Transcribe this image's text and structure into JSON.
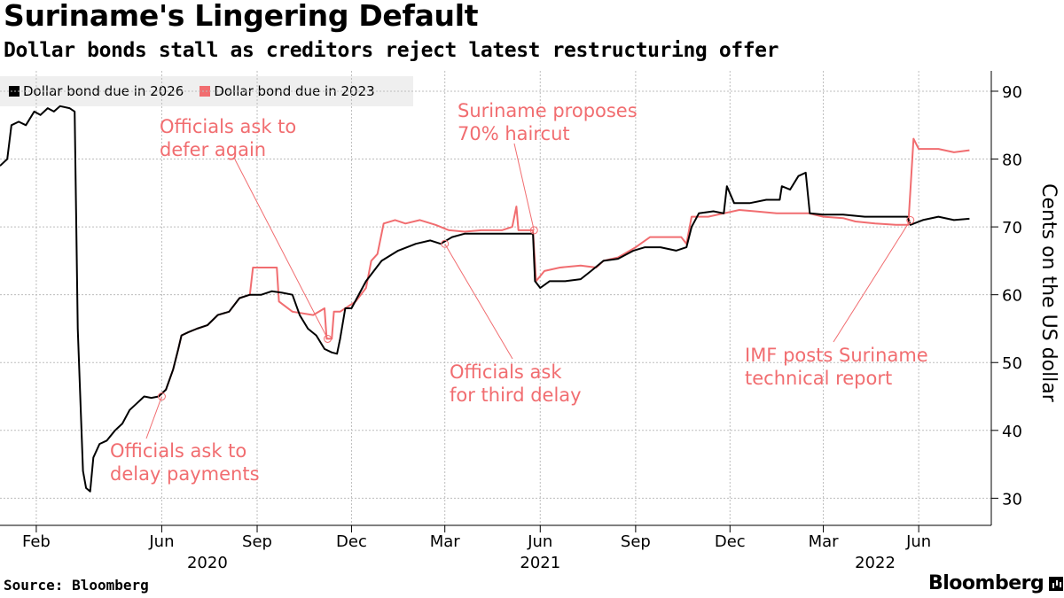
{
  "header": {
    "title": "Suriname's Lingering Default",
    "subtitle": "Dollar bonds stall as creditors reject latest restructuring offer"
  },
  "footer": {
    "source": "Source: Bloomberg",
    "brand": "Bloomberg"
  },
  "chart_data": {
    "type": "line",
    "title": "Suriname's Lingering Default",
    "subtitle": "Dollar bonds stall as creditors reject latest restructuring offer",
    "ylabel": "Cents on the US dollar",
    "ylim": [
      26,
      93
    ],
    "y_ticks": [
      30,
      40,
      50,
      60,
      70,
      80,
      90
    ],
    "x_range": [
      "2019-12-28",
      "2022-08-10"
    ],
    "x_ticks": [
      {
        "date": "2020-02-01",
        "label": "Feb"
      },
      {
        "date": "2020-06-01",
        "label": "Jun"
      },
      {
        "date": "2020-09-01",
        "label": "Sep"
      },
      {
        "date": "2020-12-01",
        "label": "Dec"
      },
      {
        "date": "2021-03-01",
        "label": "Mar"
      },
      {
        "date": "2021-06-01",
        "label": "Jun"
      },
      {
        "date": "2021-09-01",
        "label": "Sep"
      },
      {
        "date": "2021-12-01",
        "label": "Dec"
      },
      {
        "date": "2022-03-01",
        "label": "Mar"
      },
      {
        "date": "2022-06-01",
        "label": "Jun"
      }
    ],
    "year_labels": [
      {
        "date": "2020-07-15",
        "label": "2020"
      },
      {
        "date": "2021-06-01",
        "label": "2021"
      },
      {
        "date": "2022-04-20",
        "label": "2022"
      }
    ],
    "grid": true,
    "legend_position": "top-left",
    "series": [
      {
        "name": "Dollar bond due in 2026",
        "color": "#000000",
        "points": [
          [
            "2019-12-28",
            79
          ],
          [
            "2020-01-04",
            80
          ],
          [
            "2020-01-08",
            85
          ],
          [
            "2020-01-15",
            85.5
          ],
          [
            "2020-01-22",
            85
          ],
          [
            "2020-01-30",
            87
          ],
          [
            "2020-02-05",
            86.5
          ],
          [
            "2020-02-12",
            87.5
          ],
          [
            "2020-02-18",
            87
          ],
          [
            "2020-02-24",
            87.8
          ],
          [
            "2020-03-04",
            87.5
          ],
          [
            "2020-03-09",
            87
          ],
          [
            "2020-03-12",
            55
          ],
          [
            "2020-03-17",
            34
          ],
          [
            "2020-03-20",
            31.5
          ],
          [
            "2020-03-24",
            31
          ],
          [
            "2020-03-27",
            36
          ],
          [
            "2020-04-02",
            38
          ],
          [
            "2020-04-09",
            38.5
          ],
          [
            "2020-04-17",
            40
          ],
          [
            "2020-04-24",
            41
          ],
          [
            "2020-05-01",
            43
          ],
          [
            "2020-05-08",
            44
          ],
          [
            "2020-05-15",
            45
          ],
          [
            "2020-05-22",
            44.8
          ],
          [
            "2020-05-29",
            45
          ],
          [
            "2020-06-05",
            46
          ],
          [
            "2020-06-12",
            49
          ],
          [
            "2020-06-17",
            52
          ],
          [
            "2020-06-20",
            54
          ],
          [
            "2020-06-27",
            54.5
          ],
          [
            "2020-07-05",
            55
          ],
          [
            "2020-07-15",
            55.5
          ],
          [
            "2020-07-25",
            57
          ],
          [
            "2020-08-05",
            57.5
          ],
          [
            "2020-08-15",
            59.5
          ],
          [
            "2020-08-25",
            60
          ],
          [
            "2020-09-05",
            60
          ],
          [
            "2020-09-15",
            60.5
          ],
          [
            "2020-09-25",
            60.3
          ],
          [
            "2020-10-05",
            60
          ],
          [
            "2020-10-12",
            57
          ],
          [
            "2020-10-20",
            55
          ],
          [
            "2020-10-28",
            54
          ],
          [
            "2020-11-05",
            52
          ],
          [
            "2020-11-12",
            51.5
          ],
          [
            "2020-11-17",
            51.3
          ],
          [
            "2020-11-20",
            53.5
          ],
          [
            "2020-11-25",
            58
          ],
          [
            "2020-12-01",
            58
          ],
          [
            "2020-12-15",
            62
          ],
          [
            "2020-12-30",
            65
          ],
          [
            "2021-01-15",
            66.5
          ],
          [
            "2021-02-01",
            67.5
          ],
          [
            "2021-02-15",
            68
          ],
          [
            "2021-02-25",
            67.5
          ],
          [
            "2021-03-08",
            68.5
          ],
          [
            "2021-03-20",
            69
          ],
          [
            "2021-04-05",
            69
          ],
          [
            "2021-04-20",
            69
          ],
          [
            "2021-05-10",
            69
          ],
          [
            "2021-05-25",
            69
          ],
          [
            "2021-05-27",
            62
          ],
          [
            "2021-06-01",
            61
          ],
          [
            "2021-06-10",
            62
          ],
          [
            "2021-06-25",
            62
          ],
          [
            "2021-07-10",
            62.3
          ],
          [
            "2021-07-20",
            63.5
          ],
          [
            "2021-08-01",
            65
          ],
          [
            "2021-08-15",
            65.3
          ],
          [
            "2021-08-30",
            66.5
          ],
          [
            "2021-09-10",
            67
          ],
          [
            "2021-09-25",
            67
          ],
          [
            "2021-10-10",
            66.5
          ],
          [
            "2021-10-20",
            67
          ],
          [
            "2021-10-25",
            70
          ],
          [
            "2021-11-01",
            72
          ],
          [
            "2021-11-15",
            72.3
          ],
          [
            "2021-11-25",
            72
          ],
          [
            "2021-11-28",
            76
          ],
          [
            "2021-12-05",
            73.5
          ],
          [
            "2021-12-20",
            73.5
          ],
          [
            "2022-01-05",
            74
          ],
          [
            "2022-01-18",
            74
          ],
          [
            "2022-01-20",
            76
          ],
          [
            "2022-01-28",
            75.5
          ],
          [
            "2022-02-05",
            77.5
          ],
          [
            "2022-02-12",
            78
          ],
          [
            "2022-02-16",
            72
          ],
          [
            "2022-03-01",
            71.8
          ],
          [
            "2022-03-20",
            71.8
          ],
          [
            "2022-04-10",
            71.5
          ],
          [
            "2022-05-01",
            71.5
          ],
          [
            "2022-05-21",
            71.5
          ],
          [
            "2022-05-24",
            70.3
          ],
          [
            "2022-06-05",
            71
          ],
          [
            "2022-06-20",
            71.5
          ],
          [
            "2022-07-05",
            71
          ],
          [
            "2022-07-20",
            71.2
          ]
        ]
      },
      {
        "name": "Dollar bond due in 2023",
        "color": "#f16d70",
        "points": [
          [
            "2020-05-29",
            45
          ],
          [
            "2020-06-05",
            46
          ],
          [
            "2020-06-12",
            49
          ],
          [
            "2020-06-17",
            52
          ],
          [
            "2020-06-20",
            54
          ],
          [
            "2020-06-27",
            54.5
          ],
          [
            "2020-07-05",
            55
          ],
          [
            "2020-07-15",
            55.5
          ],
          [
            "2020-07-25",
            57
          ],
          [
            "2020-08-05",
            57.5
          ],
          [
            "2020-08-15",
            59.5
          ],
          [
            "2020-08-25",
            60
          ],
          [
            "2020-08-28",
            64
          ],
          [
            "2020-09-20",
            64
          ],
          [
            "2020-09-22",
            59
          ],
          [
            "2020-10-05",
            57.5
          ],
          [
            "2020-10-25",
            57
          ],
          [
            "2020-11-05",
            58
          ],
          [
            "2020-11-07",
            53.5
          ],
          [
            "2020-11-12",
            53.5
          ],
          [
            "2020-11-14",
            57.5
          ],
          [
            "2020-11-20",
            57.5
          ],
          [
            "2020-12-05",
            59
          ],
          [
            "2020-12-15",
            61
          ],
          [
            "2020-12-20",
            65
          ],
          [
            "2020-12-26",
            66
          ],
          [
            "2021-01-01",
            70.5
          ],
          [
            "2021-01-12",
            71
          ],
          [
            "2021-01-22",
            70.5
          ],
          [
            "2021-02-05",
            71
          ],
          [
            "2021-02-20",
            70.3
          ],
          [
            "2021-03-05",
            69.5
          ],
          [
            "2021-03-20",
            69.3
          ],
          [
            "2021-04-05",
            69.5
          ],
          [
            "2021-04-25",
            69.5
          ],
          [
            "2021-05-05",
            70
          ],
          [
            "2021-05-09",
            73
          ],
          [
            "2021-05-11",
            69.5
          ],
          [
            "2021-05-25",
            69.5
          ],
          [
            "2021-05-28",
            62
          ],
          [
            "2021-06-05",
            63.5
          ],
          [
            "2021-06-20",
            64
          ],
          [
            "2021-07-10",
            64.3
          ],
          [
            "2021-07-25",
            64
          ],
          [
            "2021-08-01",
            65
          ],
          [
            "2021-08-15",
            65.5
          ],
          [
            "2021-09-01",
            67
          ],
          [
            "2021-09-15",
            68.5
          ],
          [
            "2021-10-15",
            68.5
          ],
          [
            "2021-10-20",
            67.5
          ],
          [
            "2021-10-25",
            71.5
          ],
          [
            "2021-11-10",
            71.5
          ],
          [
            "2021-11-25",
            72
          ],
          [
            "2021-12-10",
            72.5
          ],
          [
            "2021-12-25",
            72.3
          ],
          [
            "2022-01-15",
            72
          ],
          [
            "2022-02-05",
            72
          ],
          [
            "2022-02-15",
            72
          ],
          [
            "2022-03-01",
            71.5
          ],
          [
            "2022-03-20",
            71.3
          ],
          [
            "2022-04-01",
            70.8
          ],
          [
            "2022-04-20",
            70.5
          ],
          [
            "2022-05-10",
            70.3
          ],
          [
            "2022-05-22",
            70.3
          ],
          [
            "2022-05-27",
            83
          ],
          [
            "2022-06-01",
            81.5
          ],
          [
            "2022-06-20",
            81.5
          ],
          [
            "2022-07-05",
            81
          ],
          [
            "2022-07-20",
            81.3
          ]
        ]
      }
    ],
    "annotations": [
      {
        "lines": [
          "Officials ask to",
          "delay payments"
        ],
        "point": [
          "2020-06-01",
          45
        ]
      },
      {
        "lines": [
          "Officials ask to",
          "defer again"
        ],
        "point": [
          "2020-11-08",
          53.5
        ]
      },
      {
        "lines": [
          "Suriname proposes",
          "70% haircut"
        ],
        "point": [
          "2021-05-26",
          69.5
        ]
      },
      {
        "lines": [
          "Officials ask",
          "for third delay"
        ],
        "point": [
          "2021-03-01",
          67.5
        ]
      },
      {
        "lines": [
          "IMF posts Suriname",
          "technical report"
        ],
        "point": [
          "2022-05-24",
          71
        ]
      }
    ]
  }
}
